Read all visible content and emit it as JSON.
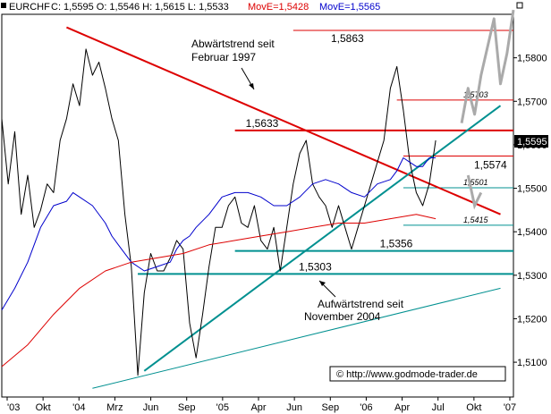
{
  "header": {
    "symbol": "EURCHF",
    "ohlc": "C: 1,5595 O: 1,5546 H: 1,5615 L: 1,5533",
    "ma_slow": "MovE=1,5428",
    "ma_fast": "MovE=1,5565",
    "colors": {
      "ma_slow": "#dd0000",
      "ma_fast": "#0000cc",
      "text": "#000000"
    }
  },
  "chart_data": {
    "type": "line",
    "title": "",
    "ylim": [
      1.502,
      1.59
    ],
    "y_ticks": [
      "1,5100",
      "1,5200",
      "1,5300",
      "1,5400",
      "1,5500",
      "1,5600",
      "1,5700",
      "1,5800"
    ],
    "x_ticks": [
      "'03",
      "Okt",
      "'04",
      "Mrz",
      "Jun",
      "Sep",
      "'05",
      "Apr",
      "Jun",
      "Sep",
      "'06",
      "Apr",
      "Jul",
      "Okt",
      "'07"
    ],
    "last_price": "1,5595",
    "series": [
      {
        "key": "price",
        "color": "#000000",
        "values": [
          [
            0,
            1.566
          ],
          [
            0.5,
            1.551
          ],
          [
            1,
            1.563
          ],
          [
            1.5,
            1.544
          ],
          [
            2,
            1.553
          ],
          [
            2.5,
            1.541
          ],
          [
            3,
            1.545
          ],
          [
            3.5,
            1.551
          ],
          [
            4,
            1.549
          ],
          [
            4.5,
            1.561
          ],
          [
            5,
            1.566
          ],
          [
            5.5,
            1.574
          ],
          [
            6,
            1.569
          ],
          [
            6.5,
            1.582
          ],
          [
            7,
            1.576
          ],
          [
            7.5,
            1.579
          ],
          [
            8,
            1.573
          ],
          [
            8.5,
            1.566
          ],
          [
            9,
            1.561
          ],
          [
            9.5,
            1.544
          ],
          [
            10,
            1.532
          ],
          [
            10.5,
            1.507
          ],
          [
            11,
            1.526
          ],
          [
            11.5,
            1.535
          ],
          [
            12,
            1.531
          ],
          [
            12.5,
            1.531
          ],
          [
            13,
            1.534
          ],
          [
            13.5,
            1.538
          ],
          [
            14,
            1.536
          ],
          [
            14.5,
            1.519
          ],
          [
            15,
            1.511
          ],
          [
            15.5,
            1.521
          ],
          [
            16,
            1.532
          ],
          [
            16.5,
            1.541
          ],
          [
            17,
            1.541
          ],
          [
            17.5,
            1.546
          ],
          [
            18,
            1.548
          ],
          [
            18.5,
            1.542
          ],
          [
            19,
            1.541
          ],
          [
            19.5,
            1.546
          ],
          [
            20,
            1.538
          ],
          [
            20.5,
            1.536
          ],
          [
            21,
            1.541
          ],
          [
            21.5,
            1.531
          ],
          [
            22,
            1.541
          ],
          [
            22.5,
            1.551
          ],
          [
            23,
            1.558
          ],
          [
            23.5,
            1.561
          ],
          [
            24,
            1.551
          ],
          [
            24.5,
            1.548
          ],
          [
            25,
            1.546
          ],
          [
            25.5,
            1.541
          ],
          [
            26,
            1.546
          ],
          [
            26.5,
            1.541
          ],
          [
            27,
            1.536
          ],
          [
            27.5,
            1.541
          ],
          [
            28,
            1.546
          ],
          [
            28.5,
            1.551
          ],
          [
            29,
            1.556
          ],
          [
            29.5,
            1.561
          ],
          [
            30,
            1.573
          ],
          [
            30.5,
            1.578
          ],
          [
            31,
            1.568
          ],
          [
            31.5,
            1.556
          ],
          [
            32,
            1.549
          ],
          [
            32.5,
            1.546
          ],
          [
            33,
            1.551
          ],
          [
            33.5,
            1.561
          ]
        ]
      },
      {
        "key": "ma_fast",
        "name": "MovE=1,5565",
        "color": "#0000cc",
        "values": [
          [
            0,
            1.522
          ],
          [
            1,
            1.527
          ],
          [
            2,
            1.533
          ],
          [
            3,
            1.541
          ],
          [
            4,
            1.546
          ],
          [
            5,
            1.547
          ],
          [
            5.5,
            1.549
          ],
          [
            6,
            1.548
          ],
          [
            7,
            1.546
          ],
          [
            8,
            1.542
          ],
          [
            8.5,
            1.539
          ],
          [
            9,
            1.537
          ],
          [
            10,
            1.533
          ],
          [
            11,
            1.531
          ],
          [
            12,
            1.532
          ],
          [
            13,
            1.533
          ],
          [
            13.5,
            1.536
          ],
          [
            14,
            1.538
          ],
          [
            14.5,
            1.539
          ],
          [
            15,
            1.541
          ],
          [
            16,
            1.544
          ],
          [
            17,
            1.548
          ],
          [
            18,
            1.549
          ],
          [
            19,
            1.549
          ],
          [
            20,
            1.548
          ],
          [
            21,
            1.546
          ],
          [
            22,
            1.546
          ],
          [
            23,
            1.548
          ],
          [
            24,
            1.551
          ],
          [
            25,
            1.552
          ],
          [
            26,
            1.551
          ],
          [
            27,
            1.549
          ],
          [
            28,
            1.548
          ],
          [
            29,
            1.551
          ],
          [
            30,
            1.552
          ],
          [
            30.5,
            1.554
          ],
          [
            31,
            1.557
          ],
          [
            31.5,
            1.556
          ],
          [
            32,
            1.555
          ],
          [
            32.5,
            1.555
          ],
          [
            33,
            1.557
          ],
          [
            33.5,
            1.557
          ]
        ]
      },
      {
        "key": "ma_slow",
        "name": "MovE=1,5428",
        "color": "#dd0000",
        "values": [
          [
            0,
            1.509
          ],
          [
            2,
            1.514
          ],
          [
            4,
            1.521
          ],
          [
            6,
            1.527
          ],
          [
            8,
            1.531
          ],
          [
            10,
            1.533
          ],
          [
            12,
            1.534
          ],
          [
            14,
            1.535
          ],
          [
            16,
            1.537
          ],
          [
            18,
            1.538
          ],
          [
            20,
            1.539
          ],
          [
            22,
            1.54
          ],
          [
            24,
            1.541
          ],
          [
            26,
            1.542
          ],
          [
            28,
            1.542
          ],
          [
            30,
            1.543
          ],
          [
            32,
            1.544
          ],
          [
            33.5,
            1.543
          ]
        ]
      },
      {
        "key": "forecast",
        "color": "#aaaaaa",
        "values": [
          [
            35.5,
            1.565
          ],
          [
            36,
            1.573
          ],
          [
            36.5,
            1.567
          ],
          [
            37,
            1.576
          ],
          [
            38,
            1.589
          ],
          [
            38.5,
            1.574
          ],
          [
            39,
            1.581
          ],
          [
            39.5,
            1.591
          ]
        ]
      }
    ],
    "forecast_alt": [
      [
        36,
        1.553
      ],
      [
        36.5,
        1.546
      ],
      [
        37,
        1.549
      ]
    ],
    "trendlines": [
      {
        "key": "down",
        "color": "#dd0000",
        "width": 2,
        "from": [
          5,
          1.587
        ],
        "to": [
          38.5,
          1.544
        ]
      },
      {
        "key": "up",
        "color": "#009090",
        "width": 2,
        "from": [
          11,
          1.508
        ],
        "to": [
          38.5,
          1.569
        ]
      },
      {
        "key": "channel",
        "color": "#009090",
        "width": 1,
        "from": [
          7,
          1.504
        ],
        "to": [
          38.5,
          1.527
        ]
      }
    ],
    "levels": [
      {
        "value": 1.5863,
        "label": "1,5863",
        "color": "#dd0000",
        "width": 1,
        "x0": 22.5
      },
      {
        "value": 1.5703,
        "label": "1,5703",
        "color": "#dd0000",
        "width": 1,
        "x0": 30.5
      },
      {
        "value": 1.5633,
        "label": "1,5633",
        "color": "#dd0000",
        "width": 2,
        "x0": 18
      },
      {
        "value": 1.5574,
        "label": "1,5574",
        "color": "#dd0000",
        "width": 1,
        "x0": 31
      },
      {
        "value": 1.5501,
        "label": "1,5501",
        "color": "#009090",
        "width": 1,
        "x0": 31
      },
      {
        "value": 1.5415,
        "label": "1,5415",
        "color": "#009090",
        "width": 1,
        "x0": 31
      },
      {
        "value": 1.5356,
        "label": "1,5356",
        "color": "#009090",
        "width": 2,
        "x0": 18
      },
      {
        "value": 1.5303,
        "label": "1,5303",
        "color": "#009090",
        "width": 2,
        "x0": 10.5
      }
    ],
    "annotations": {
      "down_trend": [
        "Abwärtstrend seit",
        "Februar 1997"
      ],
      "up_trend": [
        "Aufwärtstrend seit",
        "November 2004"
      ],
      "copyright": "© http://www.godmode-trader.de"
    }
  }
}
